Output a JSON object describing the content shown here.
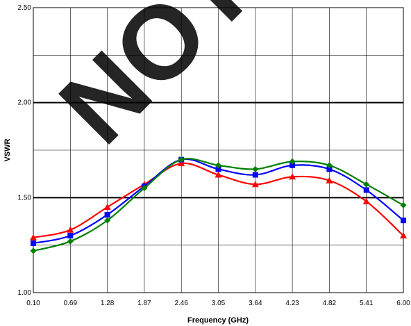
{
  "chart_data": {
    "type": "line",
    "title": "",
    "xlabel": "Frequency (GHz)",
    "ylabel": "VSWR",
    "x": [
      0.1,
      0.69,
      1.28,
      1.87,
      2.46,
      3.05,
      3.64,
      4.23,
      4.82,
      5.41,
      6.0
    ],
    "x_tick_labels": [
      "0.10",
      "0.69",
      "1.28",
      "1.87",
      "2.46",
      "3.05",
      "3.64",
      "4.23",
      "4.82",
      "5.41",
      "6.00"
    ],
    "ylim": [
      1.0,
      2.5
    ],
    "y_tick_values": [
      1.0,
      1.5,
      2.0,
      2.5
    ],
    "y_tick_labels": [
      "1.00",
      "1.50",
      "2.00",
      "2.50"
    ],
    "y_minor_gridlines": [
      1.25,
      1.75,
      2.25
    ],
    "grid": true,
    "legend": "none",
    "watermark": "NOT",
    "series": [
      {
        "color": "#ff0000",
        "marker": "triangle",
        "values": [
          1.29,
          1.33,
          1.45,
          1.57,
          1.68,
          1.62,
          1.57,
          1.61,
          1.59,
          1.48,
          1.3
        ]
      },
      {
        "color": "#0000ff",
        "marker": "square",
        "values": [
          1.26,
          1.3,
          1.41,
          1.56,
          1.7,
          1.65,
          1.62,
          1.67,
          1.65,
          1.54,
          1.38
        ]
      },
      {
        "color": "#008000",
        "marker": "diamond",
        "values": [
          1.22,
          1.27,
          1.38,
          1.55,
          1.7,
          1.67,
          1.65,
          1.69,
          1.67,
          1.57,
          1.46
        ]
      }
    ]
  }
}
